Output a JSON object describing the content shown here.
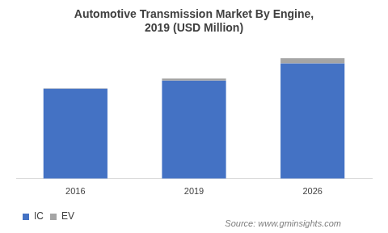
{
  "chart_data": {
    "type": "bar",
    "title": "Automotive Transmission Market By Engine, 2019 (USD Million)",
    "source": "Source: www.gminsights.com",
    "categories": [
      "2016",
      "2019",
      "2026"
    ],
    "series": [
      {
        "name": "IC",
        "color": "#4472c4",
        "values": [
          120,
          131,
          154
        ]
      },
      {
        "name": "EV",
        "color": "#a5a5a5",
        "values": [
          0.5,
          3,
          7
        ]
      }
    ],
    "stacked": true,
    "ylim": [
      0,
      170
    ],
    "yticks": [
      0,
      170
    ],
    "grid": false,
    "tick_labels": "x",
    "legend": "bottom"
  }
}
